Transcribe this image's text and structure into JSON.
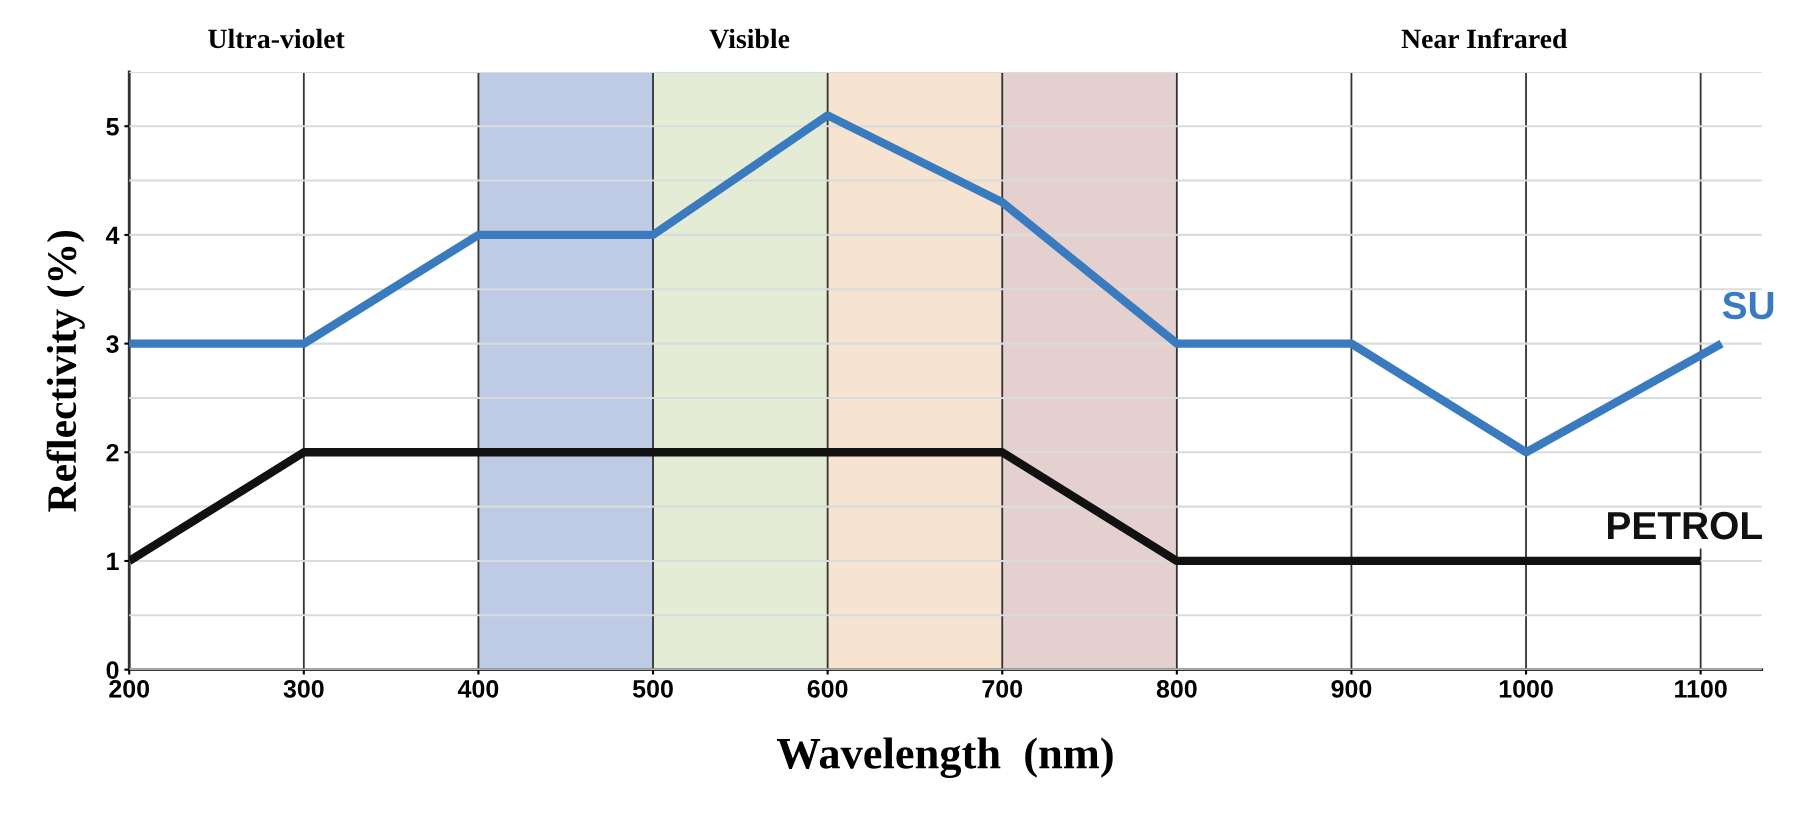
{
  "chart_data": {
    "type": "line",
    "xlabel": "Wavelength  (nm)",
    "ylabel": "Reflectivity (%)",
    "x": [
      200,
      300,
      400,
      500,
      600,
      700,
      800,
      900,
      1000,
      1100
    ],
    "series": [
      {
        "name": "SU",
        "color": "#3a7bbf",
        "x": [
          200,
          300,
          400,
          500,
          600,
          700,
          800,
          900,
          1000,
          1112
        ],
        "values": [
          3,
          3,
          4,
          4,
          5.1,
          4.3,
          3,
          3,
          2,
          3
        ]
      },
      {
        "name": "PETROL",
        "color": "#111111",
        "values": [
          1,
          2,
          2,
          2,
          2,
          2,
          1,
          1,
          1,
          1
        ]
      }
    ],
    "xlim": [
      200,
      1135
    ],
    "xticks": [
      200,
      300,
      400,
      500,
      600,
      700,
      800,
      900,
      1000,
      1100
    ],
    "ylim": [
      0,
      5.5
    ],
    "yticks": [
      0,
      1,
      2,
      3,
      4,
      5
    ],
    "bands": [
      {
        "axis": "x",
        "from": 400,
        "to": 500,
        "label": null,
        "color": "#bfcbe4"
      },
      {
        "axis": "x",
        "from": 500,
        "to": 600,
        "label": null,
        "color": "#e4ecd6"
      },
      {
        "axis": "x",
        "from": 600,
        "to": 700,
        "label": null,
        "color": "#f6e3d0"
      },
      {
        "axis": "x",
        "from": 700,
        "to": 800,
        "label": null,
        "color": "#e5d0d0"
      }
    ],
    "annotations": [
      "Ultra-violet",
      "Visible",
      "Near Infrared"
    ],
    "grid": true,
    "marker": "none",
    "line_style": "solid",
    "legend": false
  }
}
